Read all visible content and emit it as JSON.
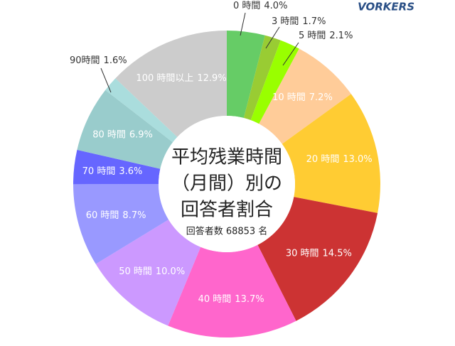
{
  "chart_data": {
    "type": "donut",
    "title_lines": [
      "平均残業時間",
      "（月間）別の",
      "回答者割合"
    ],
    "subtitle": "回答者数 68853 名",
    "brand": "VORKERS",
    "categories": [
      "0 時間",
      "3 時間",
      "5 時間",
      "10 時間",
      "20 時間",
      "30 時間",
      "40 時間",
      "50 時間",
      "60 時間",
      "70 時間",
      "80 時間",
      "90時間",
      "100 時間以上"
    ],
    "values": [
      4.0,
      1.7,
      2.1,
      7.2,
      13.0,
      14.5,
      13.7,
      10.0,
      8.7,
      3.6,
      6.9,
      1.6,
      12.9
    ],
    "value_labels": [
      "4.0%",
      "1.7%",
      "2.1%",
      "7.2%",
      "13.0%",
      "14.5%",
      "13.7%",
      "10.0%",
      "8.7%",
      "3.6%",
      "6.9%",
      "1.6%",
      "12.9%"
    ],
    "colors": [
      "#66cc66",
      "#99cc33",
      "#99ff00",
      "#ffcc99",
      "#ffcc33",
      "#cc3333",
      "#ff66cc",
      "#cc99ff",
      "#9999ff",
      "#6666ff",
      "#99cccc",
      "#aadddd",
      "#cccccc"
    ]
  }
}
